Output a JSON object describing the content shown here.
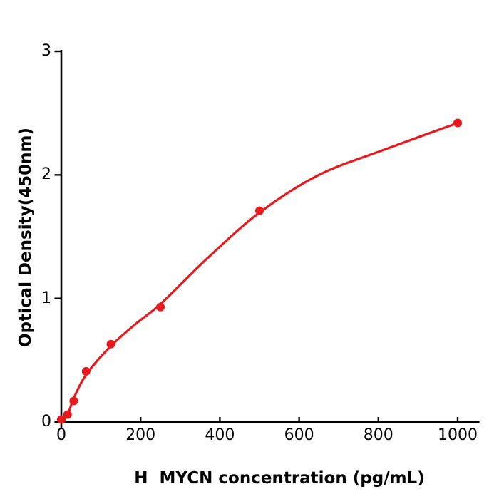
{
  "figure": {
    "background": "#ffffff",
    "accent_color": "#e8191c",
    "axis_color": "#000000"
  },
  "chart_data": {
    "type": "scatter",
    "title": "",
    "xlabel": "H  MYCN concentration (pg/mL)",
    "ylabel": "Optical Density(450nm)",
    "x_ticks": [
      0,
      200,
      400,
      600,
      800,
      1000
    ],
    "y_ticks": [
      0,
      1,
      2,
      3
    ],
    "xlim": [
      0,
      1055
    ],
    "ylim": [
      0,
      3
    ],
    "grid": false,
    "legend": "none",
    "series": [
      {
        "name": "standard-points",
        "type": "scatter",
        "color": "#e8191c",
        "x": [
          0,
          15.6,
          31.25,
          62.5,
          125,
          250,
          500,
          1000
        ],
        "y": [
          0.02,
          0.06,
          0.17,
          0.41,
          0.63,
          0.93,
          1.71,
          2.42
        ]
      },
      {
        "name": "fit-curve",
        "type": "line",
        "color": "#e8191c",
        "x": [
          0,
          16,
          31,
          63,
          125,
          190,
          252,
          370,
          500,
          650,
          820,
          1000
        ],
        "y": [
          0.01,
          0.06,
          0.19,
          0.385,
          0.615,
          0.8,
          0.96,
          1.33,
          1.695,
          2.0,
          2.21,
          2.42
        ]
      }
    ]
  }
}
